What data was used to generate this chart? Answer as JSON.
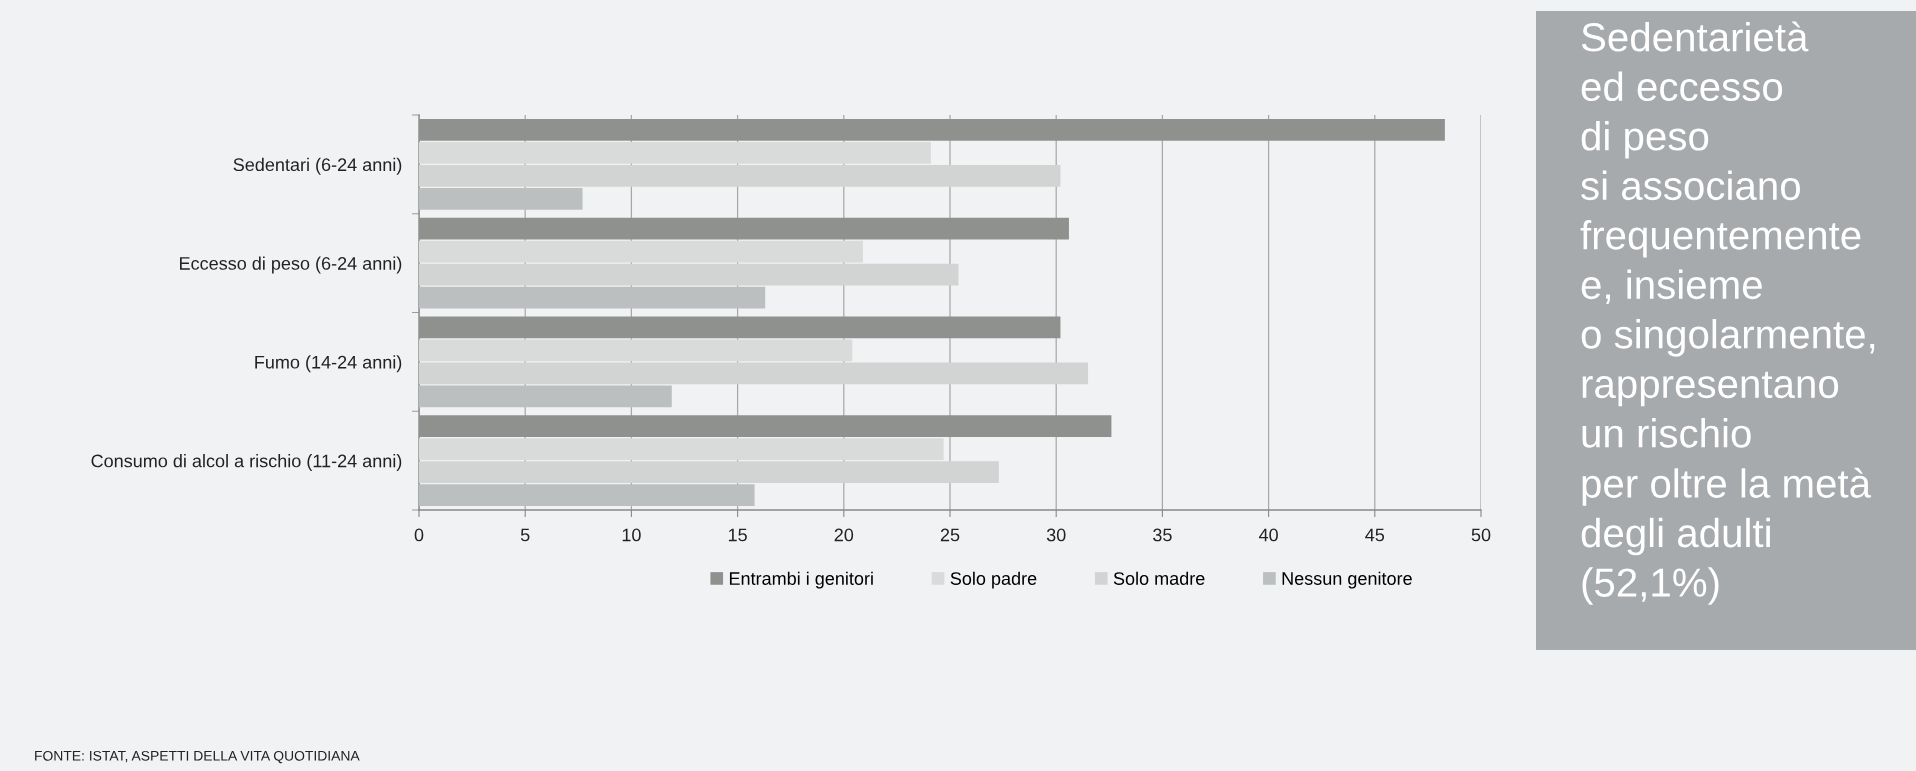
{
  "chart_data": {
    "type": "bar",
    "orientation": "horizontal",
    "categories": [
      "Sedentari (6-24 anni)",
      "Eccesso di peso (6-24 anni)",
      "Fumo (14-24 anni)",
      "Consumo di alcol a rischio (11-24 anni)"
    ],
    "series": [
      {
        "name": "Entrambi i genitori",
        "color": "#8f918f",
        "values": [
          48.3,
          30.6,
          30.2,
          32.6
        ]
      },
      {
        "name": "Solo padre",
        "color": "#d9dbdb",
        "values": [
          24.1,
          20.9,
          20.4,
          24.7
        ]
      },
      {
        "name": "Solo madre",
        "color": "#d2d4d4",
        "values": [
          30.2,
          25.4,
          31.5,
          27.3
        ]
      },
      {
        "name": "Nessun genitore",
        "color": "#bcbfbf",
        "values": [
          7.7,
          16.3,
          11.9,
          15.8
        ]
      }
    ],
    "xlim": [
      0,
      50
    ],
    "xticks": [
      0,
      5,
      10,
      15,
      20,
      25,
      30,
      35,
      40,
      45,
      50
    ],
    "grid": "x",
    "legend": "bottom",
    "annotations": [
      "Sedentarietà\ned eccesso\ndi peso\nsi associano\nfrequentemente\ne, insieme\no singolarmente,\nrappresentano\nun rischio\nper oltre la metà\ndegli adulti\n(52,1%)",
      "FONTE: ISTAT, ASPETTI DELLA VITA QUOTIDIANA"
    ]
  }
}
